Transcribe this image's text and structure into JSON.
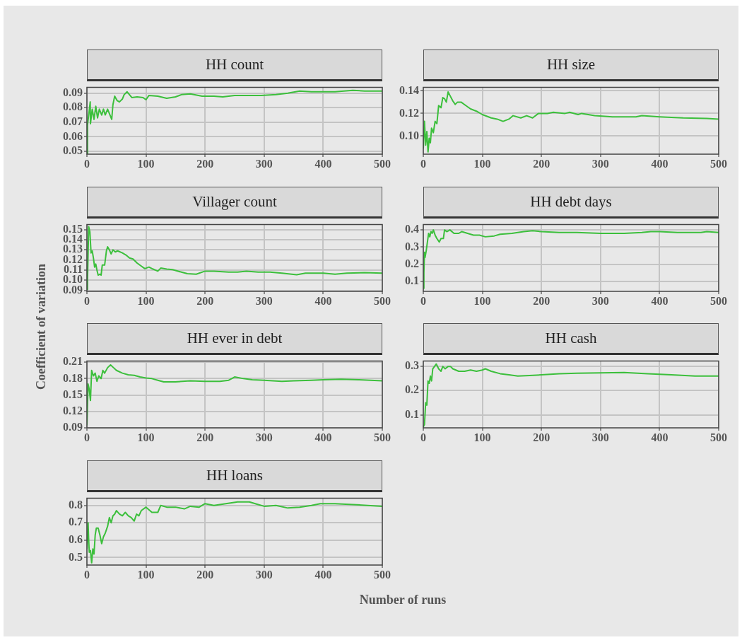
{
  "chart_data": [
    {
      "type": "line",
      "title": "HH count",
      "color": "#3cbf3c",
      "marker": "none",
      "grid": true,
      "xlim": [
        0,
        500
      ],
      "xticks": [
        0,
        100,
        200,
        300,
        400,
        500
      ],
      "ylim": [
        0.048,
        0.094
      ],
      "yticks": [
        0.05,
        0.06,
        0.07,
        0.08,
        0.09
      ],
      "x": [
        0,
        1,
        5.6,
        6,
        9,
        12,
        15,
        18,
        21,
        25,
        28,
        31,
        35,
        40,
        42,
        44,
        47,
        51,
        55,
        60,
        63,
        68,
        72,
        76,
        85,
        95,
        100,
        105,
        120,
        135,
        150,
        160,
        175,
        195,
        215,
        230,
        250,
        270,
        295,
        320,
        340,
        360,
        380,
        400,
        420,
        450,
        470,
        500
      ],
      "values": [
        0.048,
        0.068,
        0.084,
        0.069,
        0.079,
        0.072,
        0.081,
        0.073,
        0.079,
        0.075,
        0.079,
        0.075,
        0.079,
        0.074,
        0.072,
        0.082,
        0.088,
        0.085,
        0.084,
        0.086,
        0.089,
        0.091,
        0.089,
        0.087,
        0.0875,
        0.087,
        0.0855,
        0.0885,
        0.088,
        0.0865,
        0.0875,
        0.089,
        0.0895,
        0.088,
        0.088,
        0.0875,
        0.0885,
        0.0885,
        0.0885,
        0.089,
        0.09,
        0.0915,
        0.091,
        0.091,
        0.091,
        0.092,
        0.0915,
        0.0915
      ]
    },
    {
      "type": "line",
      "title": "HH size",
      "color": "#3cbf3c",
      "marker": "none",
      "grid": true,
      "xlim": [
        0,
        500
      ],
      "xticks": [
        0,
        100,
        200,
        300,
        400,
        500
      ],
      "ylim": [
        0.084,
        0.143
      ],
      "yticks": [
        {
          "value": 0.1,
          "label": "0.10"
        },
        0.12,
        0.14
      ],
      "x": [
        0,
        2,
        4,
        6,
        8,
        10,
        12,
        14,
        17,
        20,
        23,
        26,
        30,
        33,
        36,
        39,
        42,
        46,
        50,
        54,
        58,
        64,
        72,
        80,
        90,
        100,
        115,
        125,
        135,
        145,
        152,
        165,
        175,
        185,
        195,
        210,
        220,
        240,
        248,
        262,
        268,
        290,
        320,
        360,
        370,
        400,
        440,
        480,
        500
      ],
      "values": [
        0.089,
        0.113,
        0.092,
        0.104,
        0.086,
        0.098,
        0.094,
        0.107,
        0.103,
        0.113,
        0.111,
        0.127,
        0.125,
        0.134,
        0.133,
        0.13,
        0.139,
        0.135,
        0.131,
        0.128,
        0.13,
        0.13,
        0.127,
        0.124,
        0.122,
        0.119,
        0.116,
        0.115,
        0.113,
        0.115,
        0.118,
        0.116,
        0.118,
        0.116,
        0.12,
        0.12,
        0.121,
        0.12,
        0.121,
        0.119,
        0.12,
        0.118,
        0.117,
        0.117,
        0.118,
        0.117,
        0.116,
        0.1155,
        0.115
      ]
    },
    {
      "type": "line",
      "title": "Villager count",
      "ylabel": "Coefficient of variation",
      "color": "#3cbf3c",
      "marker": "none",
      "grid": true,
      "xlim": [
        0,
        500
      ],
      "xticks": [
        0,
        100,
        200,
        300,
        400,
        500
      ],
      "ylim": [
        0.089,
        0.155
      ],
      "yticks": [
        0.09,
        {
          "value": 0.1,
          "label": "0.10"
        },
        0.11,
        0.12,
        0.13,
        0.14,
        0.15
      ],
      "x": [
        0,
        1,
        3,
        5,
        7,
        9,
        11,
        13,
        15,
        17,
        19,
        22,
        24,
        26,
        30,
        33,
        35,
        38,
        41,
        44,
        48,
        52,
        60,
        66,
        72,
        78,
        85,
        92,
        98,
        105,
        112,
        120,
        125,
        135,
        145,
        160,
        170,
        185,
        200,
        215,
        240,
        255,
        270,
        290,
        310,
        330,
        355,
        370,
        400,
        420,
        440,
        470,
        500
      ],
      "values": [
        0.091,
        0.1,
        0.153,
        0.148,
        0.127,
        0.129,
        0.122,
        0.113,
        0.116,
        0.11,
        0.105,
        0.106,
        0.105,
        0.115,
        0.115,
        0.129,
        0.133,
        0.13,
        0.126,
        0.13,
        0.128,
        0.129,
        0.127,
        0.125,
        0.122,
        0.121,
        0.117,
        0.114,
        0.1115,
        0.113,
        0.111,
        0.109,
        0.112,
        0.111,
        0.1105,
        0.108,
        0.1065,
        0.106,
        0.109,
        0.109,
        0.108,
        0.108,
        0.109,
        0.108,
        0.108,
        0.107,
        0.1055,
        0.107,
        0.107,
        0.106,
        0.107,
        0.1075,
        0.107
      ]
    },
    {
      "type": "line",
      "title": "HH debt days",
      "color": "#3cbf3c",
      "marker": "none",
      "grid": true,
      "xlim": [
        0,
        500
      ],
      "xticks": [
        0,
        100,
        200,
        300,
        400,
        500
      ],
      "ylim": [
        0.043,
        0.431
      ],
      "yticks": [
        0.1,
        0.2,
        0.3,
        0.4
      ],
      "x": [
        0,
        1,
        2,
        3,
        5,
        7,
        9,
        11,
        13,
        15,
        17,
        20,
        23,
        27,
        30,
        34,
        36,
        40,
        45,
        52,
        60,
        65,
        75,
        85,
        95,
        105,
        120,
        130,
        150,
        170,
        185,
        200,
        230,
        260,
        300,
        340,
        370,
        385,
        400,
        430,
        470,
        480,
        500
      ],
      "values": [
        0.06,
        0.15,
        0.27,
        0.24,
        0.28,
        0.33,
        0.38,
        0.36,
        0.39,
        0.38,
        0.4,
        0.37,
        0.35,
        0.33,
        0.35,
        0.35,
        0.4,
        0.39,
        0.4,
        0.38,
        0.38,
        0.39,
        0.38,
        0.37,
        0.37,
        0.36,
        0.365,
        0.375,
        0.38,
        0.39,
        0.395,
        0.39,
        0.385,
        0.385,
        0.38,
        0.38,
        0.385,
        0.39,
        0.39,
        0.385,
        0.385,
        0.39,
        0.385
      ]
    },
    {
      "type": "line",
      "title": "HH ever in debt",
      "color": "#3cbf3c",
      "marker": "none",
      "grid": true,
      "xlim": [
        0,
        500
      ],
      "xticks": [
        0,
        100,
        200,
        300,
        400,
        500
      ],
      "ylim": [
        0.09,
        0.212
      ],
      "yticks": [
        0.09,
        0.12,
        0.15,
        0.18,
        0.21
      ],
      "x": [
        0,
        2,
        4,
        6,
        8,
        11,
        14,
        17,
        20,
        24,
        27,
        30,
        35,
        40,
        45,
        50,
        60,
        70,
        80,
        90,
        100,
        110,
        120,
        130,
        150,
        175,
        200,
        225,
        240,
        250,
        265,
        280,
        300,
        330,
        350,
        380,
        400,
        430,
        460,
        500
      ],
      "values": [
        0.095,
        0.17,
        0.16,
        0.14,
        0.195,
        0.185,
        0.19,
        0.175,
        0.185,
        0.18,
        0.195,
        0.19,
        0.2,
        0.205,
        0.2,
        0.195,
        0.19,
        0.187,
        0.186,
        0.183,
        0.181,
        0.18,
        0.177,
        0.174,
        0.174,
        0.176,
        0.175,
        0.175,
        0.177,
        0.183,
        0.18,
        0.178,
        0.177,
        0.175,
        0.176,
        0.177,
        0.178,
        0.179,
        0.178,
        0.176
      ]
    },
    {
      "type": "line",
      "title": "HH cash",
      "color": "#3cbf3c",
      "marker": "none",
      "grid": true,
      "xlim": [
        0,
        500
      ],
      "xticks": [
        0,
        100,
        200,
        300,
        400,
        500
      ],
      "ylim": [
        0.046,
        0.322
      ],
      "yticks": [
        0.1,
        0.2,
        0.3
      ],
      "x": [
        0,
        2,
        4,
        6,
        8,
        10,
        12,
        14,
        16,
        19,
        22,
        26,
        30,
        33,
        37,
        42,
        46,
        50,
        55,
        60,
        70,
        80,
        90,
        100,
        105,
        115,
        130,
        145,
        160,
        180,
        200,
        230,
        260,
        300,
        340,
        380,
        420,
        460,
        500
      ],
      "values": [
        0.05,
        0.06,
        0.15,
        0.14,
        0.24,
        0.23,
        0.26,
        0.24,
        0.29,
        0.3,
        0.31,
        0.29,
        0.28,
        0.3,
        0.29,
        0.3,
        0.3,
        0.29,
        0.285,
        0.28,
        0.28,
        0.285,
        0.28,
        0.285,
        0.29,
        0.28,
        0.27,
        0.265,
        0.26,
        0.262,
        0.265,
        0.27,
        0.272,
        0.273,
        0.275,
        0.27,
        0.265,
        0.26,
        0.26
      ]
    },
    {
      "type": "line",
      "title": "HH loans",
      "xlabel": "Number of runs",
      "color": "#3cbf3c",
      "marker": "none",
      "grid": true,
      "xlim": [
        0,
        500
      ],
      "xticks": [
        0,
        100,
        200,
        300,
        400,
        500
      ],
      "ylim": [
        0.457,
        0.841
      ],
      "yticks": [
        0.5,
        0.6,
        0.7,
        0.8
      ],
      "x": [
        0,
        2,
        3,
        4,
        6,
        8,
        10,
        12,
        14,
        16,
        19,
        22,
        25,
        28,
        31,
        35,
        38,
        41,
        44,
        47,
        50,
        55,
        60,
        65,
        70,
        75,
        80,
        84,
        88,
        92,
        100,
        110,
        120,
        125,
        135,
        150,
        165,
        175,
        190,
        200,
        215,
        235,
        255,
        275,
        290,
        300,
        320,
        340,
        360,
        380,
        395,
        420,
        450,
        475,
        500
      ],
      "values": [
        0.55,
        0.7,
        0.6,
        0.53,
        0.54,
        0.47,
        0.55,
        0.52,
        0.63,
        0.67,
        0.67,
        0.63,
        0.58,
        0.62,
        0.64,
        0.68,
        0.73,
        0.7,
        0.74,
        0.75,
        0.77,
        0.75,
        0.74,
        0.76,
        0.74,
        0.73,
        0.71,
        0.75,
        0.74,
        0.77,
        0.79,
        0.76,
        0.76,
        0.8,
        0.79,
        0.79,
        0.78,
        0.795,
        0.79,
        0.81,
        0.8,
        0.81,
        0.82,
        0.82,
        0.805,
        0.795,
        0.8,
        0.785,
        0.79,
        0.8,
        0.81,
        0.81,
        0.805,
        0.8,
        0.795
      ]
    }
  ]
}
